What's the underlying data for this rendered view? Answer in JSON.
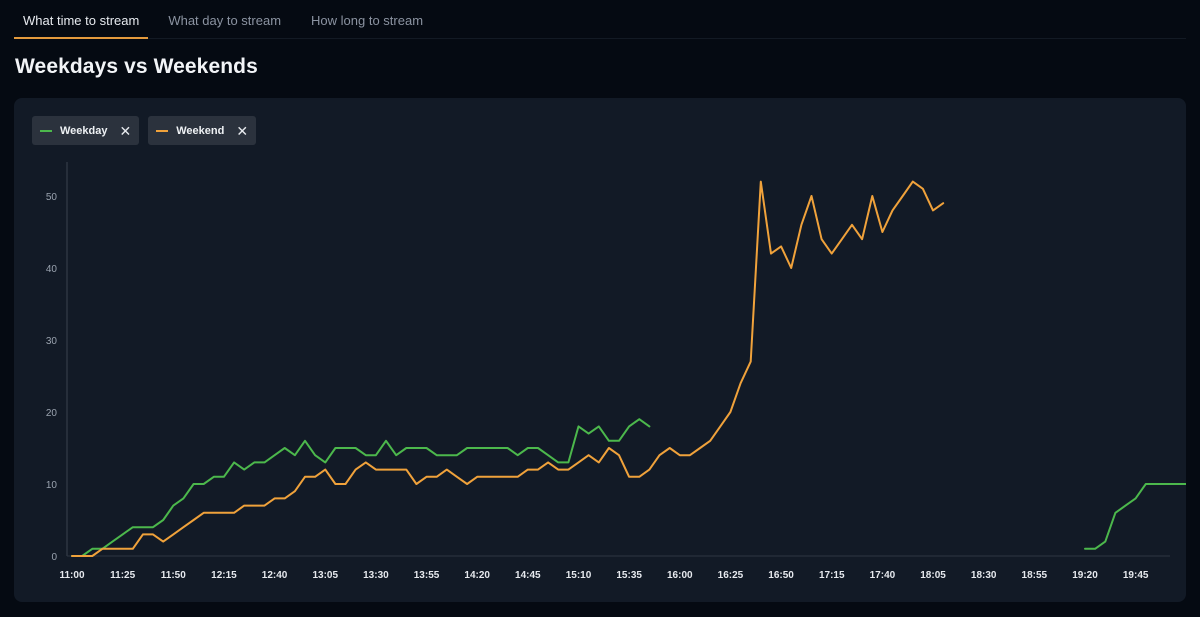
{
  "tabs": [
    {
      "label": "What time to stream",
      "active": true
    },
    {
      "label": "What day to stream",
      "active": false
    },
    {
      "label": "How long to stream",
      "active": false
    }
  ],
  "title": "Weekdays vs Weekends",
  "legend": [
    {
      "label": "Weekday",
      "color": "#4cb84c",
      "close_icon": "close-icon"
    },
    {
      "label": "Weekend",
      "color": "#f0a23b",
      "close_icon": "close-icon"
    }
  ],
  "colors": {
    "accent": "#e39a3d",
    "weekday": "#4cb84c",
    "weekend": "#f0a23b"
  },
  "chart_data": {
    "type": "line",
    "x_labels": [
      "11:00",
      "11:25",
      "11:50",
      "12:15",
      "12:40",
      "13:05",
      "13:30",
      "13:55",
      "14:20",
      "14:45",
      "15:10",
      "15:35",
      "16:00",
      "16:25",
      "16:50",
      "17:15",
      "17:40",
      "18:05",
      "18:30",
      "18:55",
      "19:20",
      "19:45"
    ],
    "x_interval_minutes": 5,
    "yticks": [
      0,
      10,
      20,
      30,
      40,
      50
    ],
    "ylim": [
      0,
      55
    ],
    "grid": false,
    "legend_position": "top-left",
    "series": [
      {
        "name": "Weekday",
        "color": "#4cb84c",
        "segments": [
          {
            "start": "11:00",
            "values": [
              0,
              0,
              1,
              1,
              2,
              3,
              4,
              4,
              4,
              5,
              7,
              8,
              10,
              10,
              11,
              11,
              13,
              12,
              13,
              13,
              14,
              15,
              14,
              16,
              14,
              13,
              15,
              15,
              15,
              14,
              14,
              16,
              14,
              15,
              15,
              15,
              14,
              14,
              14,
              15,
              15,
              15,
              15,
              15,
              14,
              15,
              15,
              14,
              13,
              13,
              18,
              17,
              18,
              16,
              16,
              18,
              19,
              18
            ]
          },
          {
            "start": "19:20",
            "values": [
              1,
              1,
              2,
              6,
              7,
              8,
              10,
              10,
              10,
              10,
              10
            ]
          }
        ]
      },
      {
        "name": "Weekend",
        "color": "#f0a23b",
        "segments": [
          {
            "start": "11:00",
            "values": [
              0,
              0,
              0,
              1,
              1,
              1,
              1,
              3,
              3,
              2,
              3,
              4,
              5,
              6,
              6,
              6,
              6,
              7,
              7,
              7,
              8,
              8,
              9,
              11,
              11,
              12,
              10,
              10,
              12,
              13,
              12,
              12,
              12,
              12,
              10,
              11,
              11,
              12,
              11,
              10,
              11,
              11,
              11,
              11,
              11,
              12,
              12,
              13,
              12,
              12,
              13,
              14,
              13,
              15,
              14,
              11,
              11,
              12,
              14,
              15,
              14,
              14,
              15,
              16,
              18,
              20,
              24,
              27,
              52,
              42,
              43,
              40,
              46,
              50,
              44,
              42,
              44,
              46,
              44,
              50,
              45,
              48,
              50,
              52,
              51,
              48,
              49
            ]
          }
        ]
      }
    ]
  }
}
